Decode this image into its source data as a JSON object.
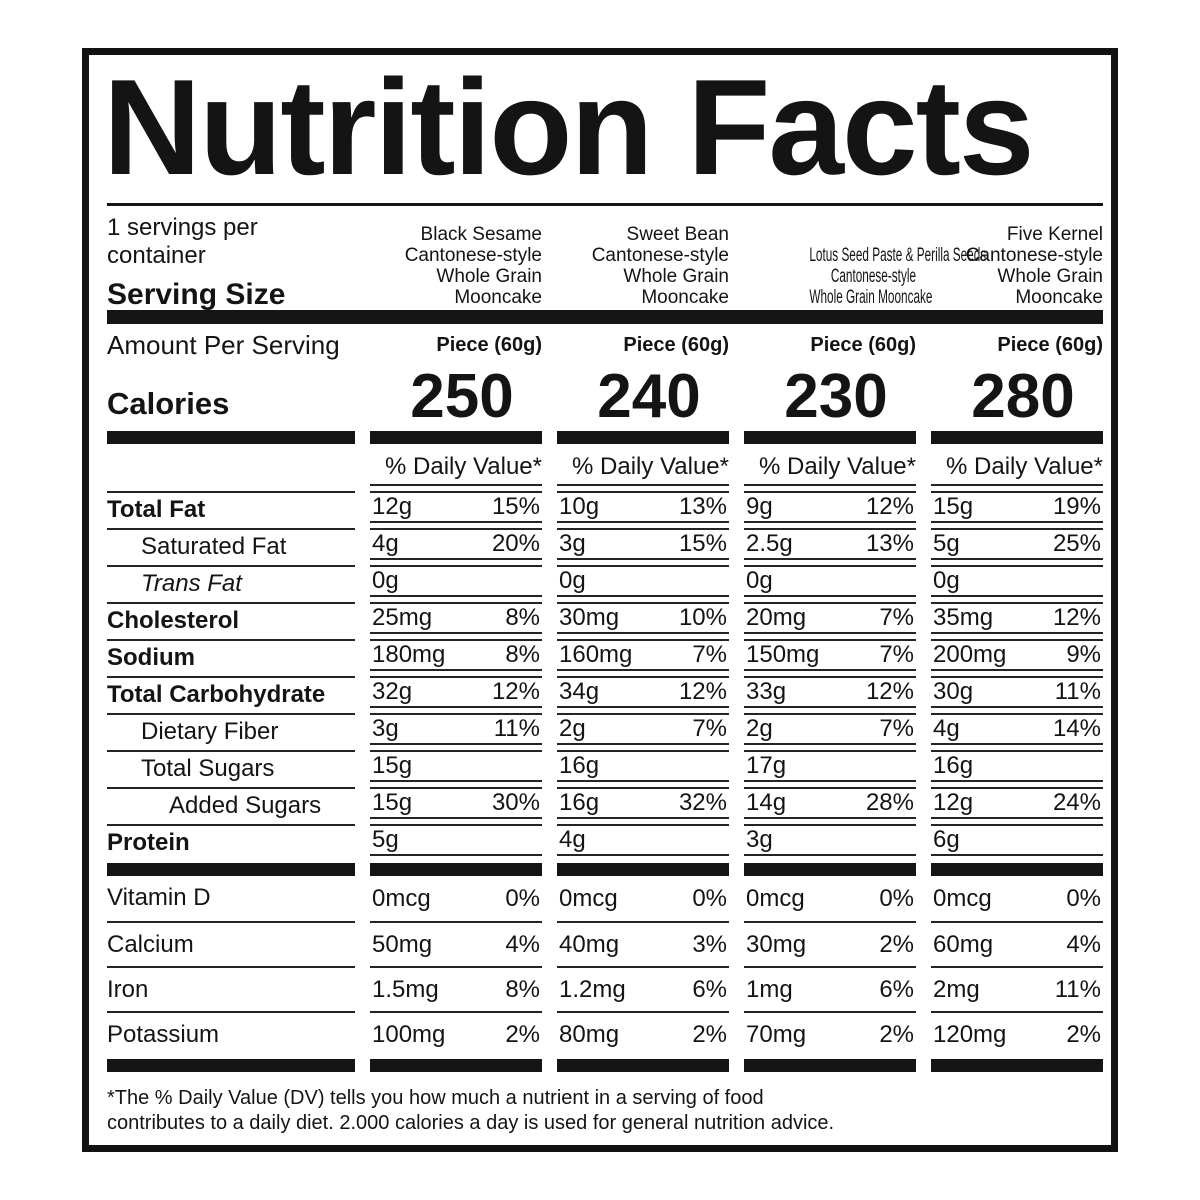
{
  "colors": {
    "ink": "#141414",
    "paper": "#ffffff"
  },
  "label": {
    "title": "Nutrition Facts",
    "servings_per_container": "1 servings per container",
    "serving_size_label": "Serving Size",
    "amount_per_serving_label": "Amount Per Serving",
    "calories_label": "Calories",
    "daily_value_header": "% Daily Value*",
    "footnote_line1": "*The % Daily Value (DV) tells you how much a nutrient in a serving of food",
    "footnote_line2": "contributes to a daily diet. 2.000 calories a day is used for general nutrition advice."
  },
  "products": [
    {
      "name_lines": [
        "Black Sesame",
        "Cantonese-style",
        "Whole Grain Mooncake"
      ],
      "serving": "Piece (60g)",
      "calories": "250"
    },
    {
      "name_lines": [
        "Sweet Bean",
        "Cantonese-style",
        "Whole Grain Mooncake"
      ],
      "serving": "Piece (60g)",
      "calories": "240"
    },
    {
      "name_lines": [
        "Lotus Seed Paste & Perilla Seeds",
        "Cantonese-style",
        "Whole Grain Mooncake"
      ],
      "serving": "Piece (60g)",
      "calories": "230"
    },
    {
      "name_lines": [
        "Five Kernel",
        "Cantonese-style",
        "Whole Grain Mooncake"
      ],
      "serving": "Piece (60g)",
      "calories": "280"
    }
  ],
  "nutrients": [
    {
      "name": "Total Fat",
      "values": [
        {
          "amount": "12g",
          "dv": "15%"
        },
        {
          "amount": "10g",
          "dv": "13%"
        },
        {
          "amount": "9g",
          "dv": "12%"
        },
        {
          "amount": "15g",
          "dv": "19%"
        }
      ]
    },
    {
      "name": "Saturated Fat",
      "values": [
        {
          "amount": "4g",
          "dv": "20%"
        },
        {
          "amount": "3g",
          "dv": "15%"
        },
        {
          "amount": "2.5g",
          "dv": "13%"
        },
        {
          "amount": "5g",
          "dv": "25%"
        }
      ]
    },
    {
      "name": "Trans Fat",
      "values": [
        {
          "amount": "0g",
          "dv": ""
        },
        {
          "amount": "0g",
          "dv": ""
        },
        {
          "amount": "0g",
          "dv": ""
        },
        {
          "amount": "0g",
          "dv": ""
        }
      ]
    },
    {
      "name": "Cholesterol",
      "values": [
        {
          "amount": "25mg",
          "dv": "8%"
        },
        {
          "amount": "30mg",
          "dv": "10%"
        },
        {
          "amount": "20mg",
          "dv": "7%"
        },
        {
          "amount": "35mg",
          "dv": "12%"
        }
      ]
    },
    {
      "name": "Sodium",
      "values": [
        {
          "amount": "180mg",
          "dv": "8%"
        },
        {
          "amount": "160mg",
          "dv": "7%"
        },
        {
          "amount": "150mg",
          "dv": "7%"
        },
        {
          "amount": "200mg",
          "dv": "9%"
        }
      ]
    },
    {
      "name": "Total Carbohydrate",
      "values": [
        {
          "amount": "32g",
          "dv": "12%"
        },
        {
          "amount": "34g",
          "dv": "12%"
        },
        {
          "amount": "33g",
          "dv": "12%"
        },
        {
          "amount": "30g",
          "dv": "11%"
        }
      ]
    },
    {
      "name": "Dietary Fiber",
      "values": [
        {
          "amount": "3g",
          "dv": "11%"
        },
        {
          "amount": "2g",
          "dv": "7%"
        },
        {
          "amount": "2g",
          "dv": "7%"
        },
        {
          "amount": "4g",
          "dv": "14%"
        }
      ]
    },
    {
      "name": "Total Sugars",
      "values": [
        {
          "amount": "15g",
          "dv": ""
        },
        {
          "amount": "16g",
          "dv": ""
        },
        {
          "amount": "17g",
          "dv": ""
        },
        {
          "amount": "16g",
          "dv": ""
        }
      ]
    },
    {
      "name": "Added Sugars",
      "values": [
        {
          "amount": "15g",
          "dv": "30%"
        },
        {
          "amount": "16g",
          "dv": "32%"
        },
        {
          "amount": "14g",
          "dv": "28%"
        },
        {
          "amount": "12g",
          "dv": "24%"
        }
      ]
    },
    {
      "name": "Protein",
      "values": [
        {
          "amount": "5g",
          "dv": ""
        },
        {
          "amount": "4g",
          "dv": ""
        },
        {
          "amount": "3g",
          "dv": ""
        },
        {
          "amount": "6g",
          "dv": ""
        }
      ]
    },
    {
      "name": "Vitamin D",
      "values": [
        {
          "amount": "0mcg",
          "dv": "0%"
        },
        {
          "amount": "0mcg",
          "dv": "0%"
        },
        {
          "amount": "0mcg",
          "dv": "0%"
        },
        {
          "amount": "0mcg",
          "dv": "0%"
        }
      ]
    },
    {
      "name": "Calcium",
      "values": [
        {
          "amount": "50mg",
          "dv": "4%"
        },
        {
          "amount": "40mg",
          "dv": "3%"
        },
        {
          "amount": "30mg",
          "dv": "2%"
        },
        {
          "amount": "60mg",
          "dv": "4%"
        }
      ]
    },
    {
      "name": "Iron",
      "values": [
        {
          "amount": "1.5mg",
          "dv": "8%"
        },
        {
          "amount": "1.2mg",
          "dv": "6%"
        },
        {
          "amount": "1mg",
          "dv": "6%"
        },
        {
          "amount": "2mg",
          "dv": "11%"
        }
      ]
    },
    {
      "name": "Potassium",
      "values": [
        {
          "amount": "100mg",
          "dv": "2%"
        },
        {
          "amount": "80mg",
          "dv": "2%"
        },
        {
          "amount": "70mg",
          "dv": "2%"
        },
        {
          "amount": "120mg",
          "dv": "2%"
        }
      ]
    }
  ]
}
